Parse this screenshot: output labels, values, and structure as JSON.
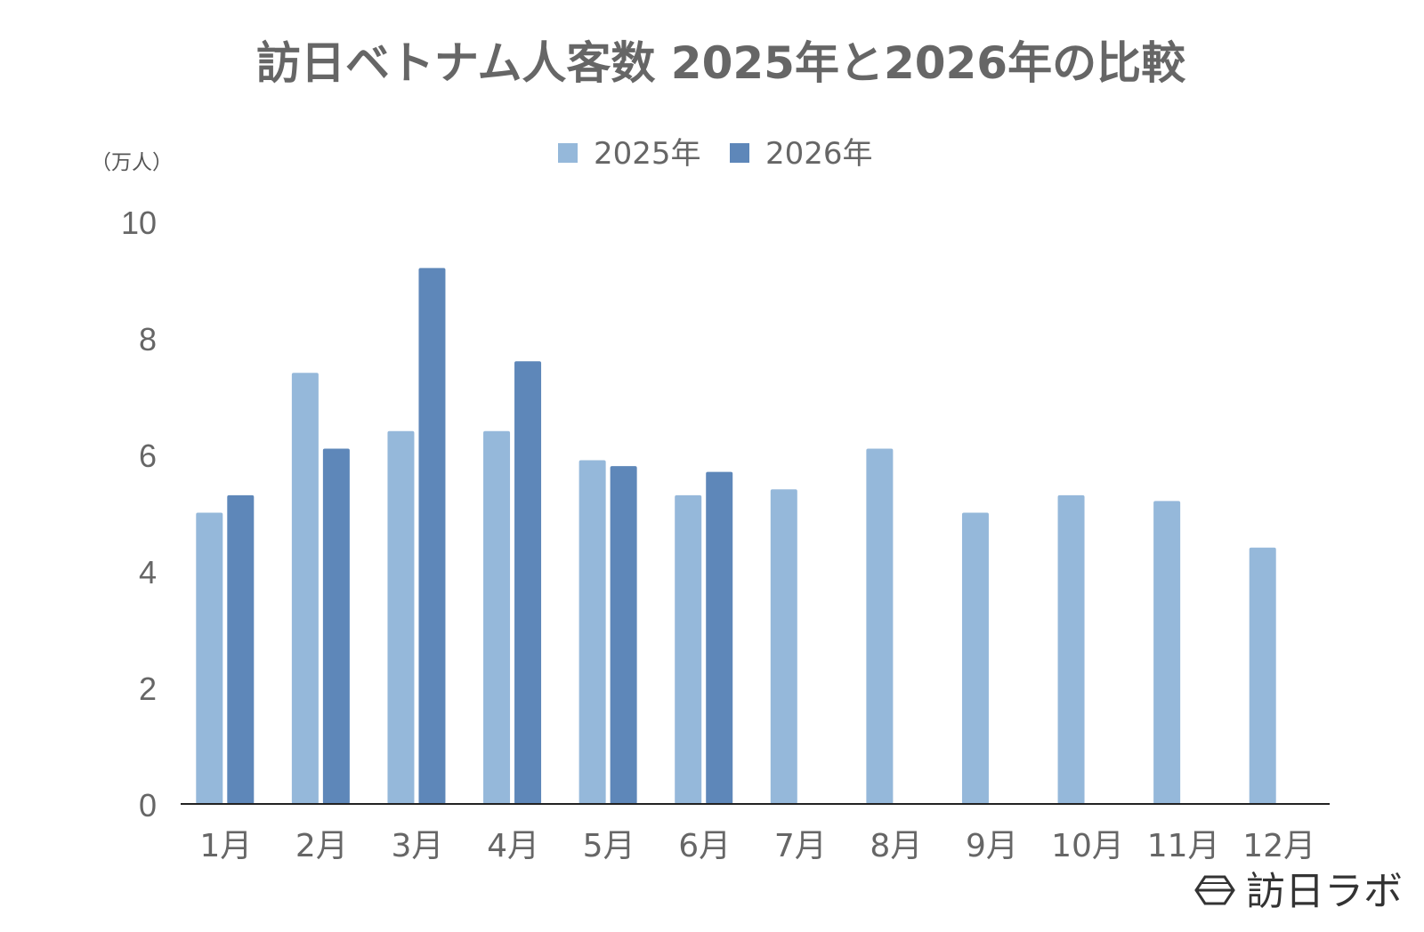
{
  "chart_data": {
    "type": "bar",
    "title": "訪日ベトナム人客数 2025年と2026年の比較",
    "unit_label": "（万人）",
    "categories": [
      "1月",
      "2月",
      "3月",
      "4月",
      "5月",
      "6月",
      "7月",
      "8月",
      "9月",
      "10月",
      "11月",
      "12月"
    ],
    "series": [
      {
        "name": "2025年",
        "color": "#95b8da",
        "values": [
          5.0,
          7.4,
          6.4,
          6.4,
          5.9,
          5.3,
          5.4,
          6.1,
          5.0,
          5.3,
          5.2,
          4.4
        ]
      },
      {
        "name": "2026年",
        "color": "#5e87b9",
        "values": [
          5.3,
          6.1,
          9.2,
          7.6,
          5.8,
          5.7,
          null,
          null,
          null,
          null,
          null,
          null
        ]
      }
    ],
    "ylim": [
      0,
      10
    ],
    "yticks": [
      0,
      2,
      4,
      6,
      8,
      10
    ],
    "grid": false,
    "legend": "top-center"
  },
  "brand": {
    "name": "訪日ラボ",
    "logo_icon": "hexagon-logo-icon"
  },
  "colors": {
    "text": "#666666",
    "axis": "#222222"
  }
}
